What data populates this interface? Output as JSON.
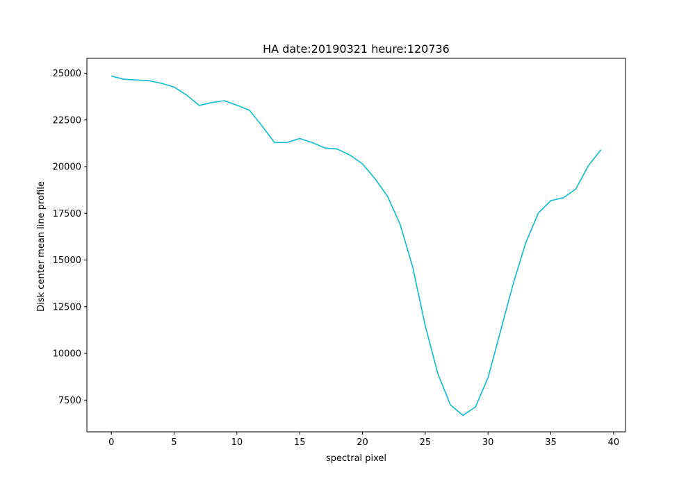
{
  "chart_data": {
    "type": "line",
    "title": "HA date:20190321 heure:120736",
    "xlabel": "spectral pixel",
    "ylabel": "Disk center mean line profile",
    "xlim": [
      -1.95,
      40.95
    ],
    "ylim": [
      5800,
      25800
    ],
    "xticks": [
      0,
      5,
      10,
      15,
      20,
      25,
      30,
      35,
      40
    ],
    "yticks": [
      7500,
      10000,
      12500,
      15000,
      17500,
      20000,
      22500,
      25000
    ],
    "grid": false,
    "series": [
      {
        "color": "#17becf",
        "x": [
          0,
          1,
          2,
          3,
          4,
          5,
          6,
          7,
          8,
          9,
          10,
          11,
          12,
          13,
          14,
          15,
          16,
          17,
          18,
          19,
          20,
          21,
          22,
          23,
          24,
          25,
          26,
          27,
          28,
          29,
          30,
          31,
          32,
          33,
          34,
          35,
          36,
          37,
          38,
          39
        ],
        "values": [
          24850,
          24680,
          24640,
          24600,
          24460,
          24260,
          23830,
          23280,
          23430,
          23530,
          23290,
          23020,
          22180,
          21290,
          21290,
          21510,
          21290,
          21000,
          20940,
          20620,
          20150,
          19350,
          18410,
          16910,
          14630,
          11480,
          8920,
          7250,
          6680,
          7130,
          8700,
          11200,
          13720,
          15910,
          17510,
          18180,
          18330,
          18810,
          20060,
          20910
        ]
      }
    ]
  }
}
